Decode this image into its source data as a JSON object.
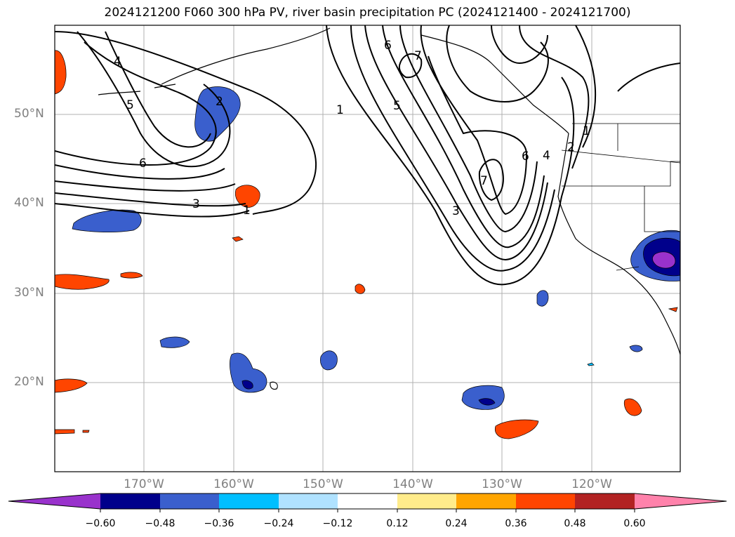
{
  "title": "2024121200 F060 300 hPa PV, river basin precipitation PC (2024121400 - 2024121700)",
  "lat_labels": [
    "50°N",
    "40°N",
    "30°N",
    "20°N"
  ],
  "lon_labels": [
    "170°W",
    "160°W",
    "150°W",
    "140°W",
    "130°W",
    "120°W"
  ],
  "colorbar": {
    "ticks": [
      "−0.60",
      "−0.48",
      "−0.36",
      "−0.24",
      "−0.12",
      "0.12",
      "0.24",
      "0.36",
      "0.48",
      "0.60"
    ],
    "colors": [
      "#9932CC",
      "#00008B",
      "#3A5FCD",
      "#00BFFF",
      "#B0E2FF",
      "#FFFFFF",
      "#FFEC8B",
      "#FFA500",
      "#FF4500",
      "#B22222",
      "#FF82AB"
    ]
  },
  "contour_labels": [
    "4",
    "5",
    "6",
    "2",
    "1",
    "3",
    "1",
    "6",
    "7",
    "5",
    "7",
    "6",
    "4",
    "2",
    "1",
    "3"
  ]
}
